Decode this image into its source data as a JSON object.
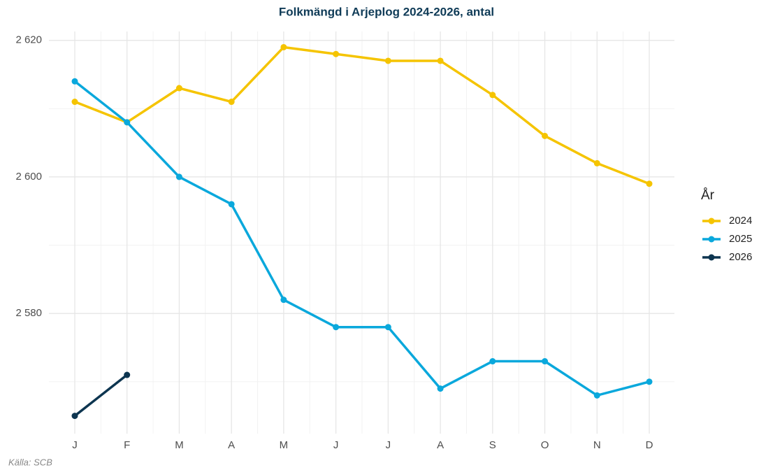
{
  "chart_data": {
    "type": "line",
    "title": "Folkmängd i Arjeplog 2024-2026, antal",
    "caption": "Källa: SCB",
    "legend_title": "År",
    "legend_position": "right",
    "categories": [
      "J",
      "F",
      "M",
      "A",
      "M",
      "J",
      "J",
      "A",
      "S",
      "O",
      "N",
      "D"
    ],
    "series": [
      {
        "name": "2024",
        "color": "#f5c400",
        "values": [
          2611,
          2608,
          2613,
          2611,
          2619,
          2618,
          2617,
          2617,
          2612,
          2606,
          2602,
          2599
        ]
      },
      {
        "name": "2025",
        "color": "#0aa8dc",
        "values": [
          2614,
          2608,
          2600,
          2596,
          2582,
          2578,
          2578,
          2569,
          2573,
          2573,
          2568,
          2570
        ]
      },
      {
        "name": "2026",
        "color": "#0d3550",
        "values": [
          2565,
          2571,
          null,
          null,
          null,
          null,
          null,
          null,
          null,
          null,
          null,
          null
        ]
      }
    ],
    "ylim": [
      2562.4,
      2621.3
    ],
    "yticks": [
      {
        "value": 2580,
        "label": "2 580"
      },
      {
        "value": 2600,
        "label": "2 600"
      },
      {
        "value": 2620,
        "label": "2 620"
      }
    ],
    "y_minor_ticks": [
      2570,
      2590,
      2610
    ],
    "grid": true
  }
}
